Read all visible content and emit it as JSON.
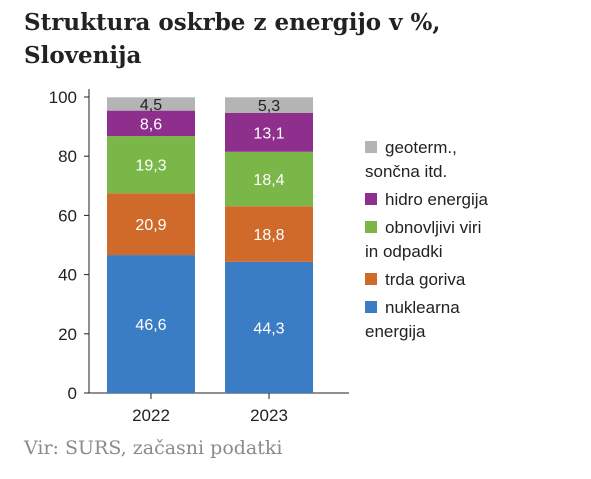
{
  "chart_data": {
    "type": "bar",
    "stacked": true,
    "title": "Struktura oskrbe z energijo v %, Slovenija",
    "xlabel": "",
    "ylabel": "",
    "ylim": [
      0,
      100
    ],
    "yticks": [
      0,
      20,
      40,
      60,
      80,
      100
    ],
    "categories": [
      "2022",
      "2023"
    ],
    "series": [
      {
        "name": "nuklearna energija",
        "color": "#3a7dc4",
        "values": [
          46.6,
          44.3
        ],
        "labels": [
          "46,6",
          "44,3"
        ]
      },
      {
        "name": "trda goriva",
        "color": "#d06a2b",
        "values": [
          20.9,
          18.8
        ],
        "labels": [
          "20,9",
          "18,8"
        ]
      },
      {
        "name": "obnovljivi viri in odpadki",
        "color": "#7ab648",
        "values": [
          19.3,
          18.4
        ],
        "labels": [
          "19,3",
          "18,4"
        ]
      },
      {
        "name": "hidro energija",
        "color": "#8e2f8e",
        "values": [
          8.6,
          13.1
        ],
        "labels": [
          "8,6",
          "13,1"
        ]
      },
      {
        "name": "geoterm., sončna itd.",
        "color": "#b4b4b4",
        "values": [
          4.5,
          5.3
        ],
        "labels": [
          "4,5",
          "5,3"
        ]
      }
    ],
    "legend": {
      "position": "right",
      "entries": [
        {
          "series": "geoterm., sončna itd.",
          "lines": [
            "geoterm.,",
            "sončna itd."
          ]
        },
        {
          "series": "hidro energija",
          "lines": [
            "hidro energija"
          ]
        },
        {
          "series": "obnovljivi viri in odpadki",
          "lines": [
            "obnovljivi viri",
            "in odpadki"
          ]
        },
        {
          "series": "trda goriva",
          "lines": [
            "trda goriva"
          ]
        },
        {
          "series": "nuklearna energija",
          "lines": [
            "nuklearna",
            "energija"
          ]
        }
      ]
    },
    "grid": false
  },
  "source": "Vir: SURS, začasni podatki"
}
